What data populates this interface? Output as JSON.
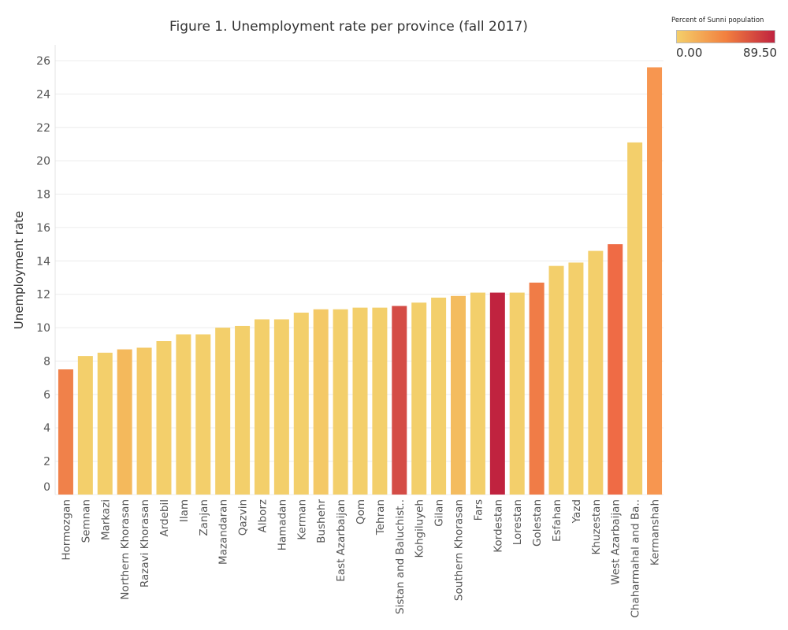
{
  "chart_data": {
    "type": "bar",
    "title": "Figure 1. Unemployment rate per province (fall 2017)",
    "ylabel": "Unemployment rate",
    "xlabel": "",
    "ylim": [
      0,
      26
    ],
    "yticks": [
      0,
      2,
      4,
      6,
      8,
      10,
      12,
      14,
      16,
      18,
      20,
      22,
      24,
      26
    ],
    "grid": "horizontal",
    "categories": [
      "Hormozgan",
      "Semnan",
      "Markazi",
      "Northern Khorasan",
      "Razavi Khorasan",
      "Ardebil",
      "Ilam",
      "Zanjan",
      "Mazandaran",
      "Qazvin",
      "Alborz",
      "Hamadan",
      "Kerman",
      "Bushehr",
      "East Azarbaijan",
      "Qom",
      "Tehran",
      "Sistan and Baluchist..",
      "Kohgiluyeh",
      "Gilan",
      "Southern Khorasan",
      "Fars",
      "Kordestan",
      "Lorestan",
      "Golestan",
      "Esfahan",
      "Yazd",
      "Khuzestan",
      "West Azarbaijan",
      "Chaharmahal and Ba..",
      "Kermanshah"
    ],
    "values": [
      7.5,
      8.3,
      8.5,
      8.7,
      8.8,
      9.2,
      9.6,
      9.6,
      10.0,
      10.1,
      10.5,
      10.5,
      10.9,
      11.1,
      11.1,
      11.2,
      11.2,
      11.3,
      11.5,
      11.8,
      11.9,
      12.1,
      12.1,
      12.1,
      12.7,
      13.7,
      13.9,
      14.6,
      15.0,
      21.1,
      25.6
    ],
    "bar_colors": [
      "#f0814a",
      "#f3cf6b",
      "#f3cf6b",
      "#f4b95c",
      "#f4c967",
      "#f3cf6b",
      "#f3cf6b",
      "#f3cf6b",
      "#f3cf6b",
      "#f3cf6b",
      "#f3cf6b",
      "#f3cf6b",
      "#f3cf6b",
      "#f4c967",
      "#f3cf6b",
      "#f3cf6b",
      "#f3cf6b",
      "#d44c46",
      "#f3cf6b",
      "#f3cf6b",
      "#f4bc5f",
      "#f3cf6b",
      "#c0233f",
      "#f3cf6b",
      "#f07c47",
      "#f3cf6b",
      "#f3cf6b",
      "#f3cf6b",
      "#ef6b45",
      "#f3cf6b",
      "#f79650"
    ],
    "legend": {
      "title": "Percent of Sunni population",
      "min_label": "0.00",
      "max_label": "89.50",
      "color_low": "#f4cf6a",
      "color_mid": "#f2803f",
      "color_high": "#c0233f",
      "placement": "top-right"
    }
  }
}
